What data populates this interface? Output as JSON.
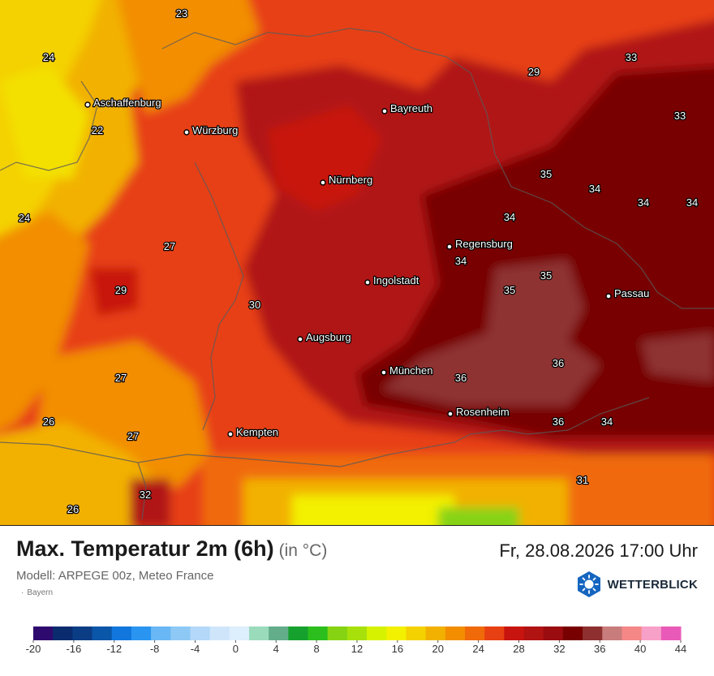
{
  "title": "Max. Temperatur 2m (6h)",
  "unit": "(in °C)",
  "datetime": "Fr, 28.08.2026 17:00 Uhr",
  "model": "Modell: ARPEGE 00z, Meteo France",
  "region": "Bayern",
  "brand": "WETTERBLICK",
  "cities": [
    {
      "name": "Aschaffenburg"
    },
    {
      "name": "Würzburg"
    },
    {
      "name": "Bayreuth"
    },
    {
      "name": "Nürnberg"
    },
    {
      "name": "Regensburg"
    },
    {
      "name": "Ingolstadt"
    },
    {
      "name": "Passau"
    },
    {
      "name": "Augsburg"
    },
    {
      "name": "München"
    },
    {
      "name": "Rosenheim"
    },
    {
      "name": "Kempten"
    }
  ],
  "temperature_labels": [
    "23",
    "24",
    "22",
    "24",
    "27",
    "29",
    "30",
    "27",
    "26",
    "27",
    "32",
    "26",
    "29",
    "33",
    "33",
    "35",
    "34",
    "34",
    "34",
    "34",
    "34",
    "35",
    "35",
    "36",
    "36",
    "36",
    "34",
    "31"
  ],
  "legend": {
    "tick_labels": [
      "-20",
      "-16",
      "-12",
      "-8",
      "-4",
      "0",
      "4",
      "8",
      "12",
      "16",
      "20",
      "24",
      "28",
      "32",
      "36",
      "40",
      "44"
    ],
    "colors": [
      "#2e0a6e",
      "#0a2c6e",
      "#0b3d85",
      "#0a56a8",
      "#1177dd",
      "#2a95f0",
      "#6ab7f5",
      "#8ec8f5",
      "#b3d8f8",
      "#cfe6fa",
      "#ddeefc",
      "#9adbbc",
      "#63ad8a",
      "#16a12e",
      "#2bbe1d",
      "#86d313",
      "#a7e00b",
      "#d6f200",
      "#f3f000",
      "#f4d100",
      "#f2b100",
      "#f28e00",
      "#f06a0a",
      "#e74012",
      "#c8140f",
      "#b11212",
      "#9a0c10",
      "#780000",
      "#8e3030",
      "#c97c7c",
      "#f58787",
      "#f7a0c8",
      "#e95ab8"
    ]
  },
  "colors": {
    "title": "#1a1a1a",
    "subtitle": "#666666",
    "brand_badge": "#1565c0"
  }
}
